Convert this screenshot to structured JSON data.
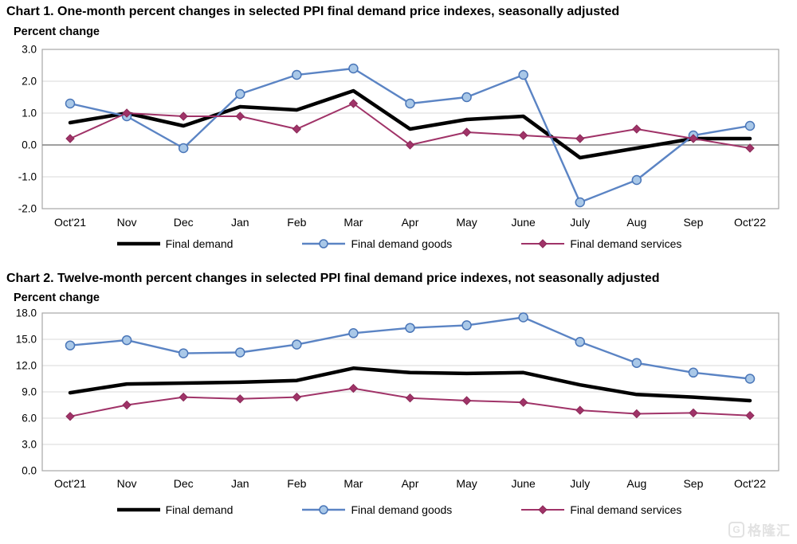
{
  "page": {
    "background": "#ffffff"
  },
  "watermark": {
    "logo_letter": "G",
    "text": "格隆汇",
    "color": "#e2e2e2"
  },
  "style": {
    "grid_color": "#d9d9d9",
    "border_color": "#a6a6a6",
    "zero_line_color": "#808080",
    "tick_label_color": "#000000"
  },
  "chart_data": [
    {
      "type": "line",
      "title": "Chart 1. One-month percent changes in selected PPI final demand price indexes, seasonally adjusted",
      "ylabel": "Percent change",
      "categories": [
        "Oct'21",
        "Nov",
        "Dec",
        "Jan",
        "Feb",
        "Mar",
        "Apr",
        "May",
        "June",
        "July",
        "Aug",
        "Sep",
        "Oct'22"
      ],
      "ylim": [
        -2,
        3
      ],
      "yticks": [
        3,
        2,
        1,
        0,
        -1,
        -2
      ],
      "grid": true,
      "zero_line": true,
      "legend_position": "bottom",
      "series": [
        {
          "name": "Final demand",
          "color": "#000000",
          "line_width": 4.5,
          "marker": "none",
          "values": [
            0.7,
            1.0,
            0.6,
            1.2,
            1.1,
            1.7,
            0.5,
            0.8,
            0.9,
            -0.4,
            -0.1,
            0.2,
            0.2
          ]
        },
        {
          "name": "Final demand goods",
          "color": "#5b84c4",
          "line_width": 2.4,
          "marker": "circle",
          "marker_fill": "#a9c8e8",
          "marker_stroke": "#4a76b8",
          "values": [
            1.3,
            0.9,
            -0.1,
            1.6,
            2.2,
            2.4,
            1.3,
            1.5,
            2.2,
            -1.8,
            -1.1,
            0.3,
            0.6
          ]
        },
        {
          "name": "Final demand services",
          "color": "#a03368",
          "line_width": 2,
          "marker": "diamond",
          "marker_fill": "#a03368",
          "marker_stroke": "#8b2a58",
          "values": [
            0.2,
            1.0,
            0.9,
            0.9,
            0.5,
            1.3,
            0.0,
            0.4,
            0.3,
            0.2,
            0.5,
            0.2,
            -0.1
          ]
        }
      ]
    },
    {
      "type": "line",
      "title": "Chart 2. Twelve-month percent changes in selected PPI final demand price indexes, not seasonally adjusted",
      "ylabel": "Percent change",
      "categories": [
        "Oct'21",
        "Nov",
        "Dec",
        "Jan",
        "Feb",
        "Mar",
        "Apr",
        "May",
        "June",
        "July",
        "Aug",
        "Sep",
        "Oct'22"
      ],
      "ylim": [
        0,
        18
      ],
      "yticks": [
        18,
        15,
        12,
        9,
        6,
        3,
        0
      ],
      "grid": true,
      "zero_line": false,
      "legend_position": "bottom",
      "series": [
        {
          "name": "Final demand",
          "color": "#000000",
          "line_width": 4.5,
          "marker": "none",
          "values": [
            8.9,
            9.9,
            10.0,
            10.1,
            10.3,
            11.7,
            11.2,
            11.1,
            11.2,
            9.8,
            8.7,
            8.4,
            8.0
          ]
        },
        {
          "name": "Final demand goods",
          "color": "#5b84c4",
          "line_width": 2.4,
          "marker": "circle",
          "marker_fill": "#a9c8e8",
          "marker_stroke": "#4a76b8",
          "values": [
            14.3,
            14.9,
            13.4,
            13.5,
            14.4,
            15.7,
            16.3,
            16.6,
            17.5,
            14.7,
            12.3,
            11.2,
            10.5
          ]
        },
        {
          "name": "Final demand services",
          "color": "#a03368",
          "line_width": 2,
          "marker": "diamond",
          "marker_fill": "#a03368",
          "marker_stroke": "#8b2a58",
          "values": [
            6.2,
            7.5,
            8.4,
            8.2,
            8.4,
            9.4,
            8.3,
            8.0,
            7.8,
            6.9,
            6.5,
            6.6,
            6.3
          ]
        }
      ]
    }
  ]
}
